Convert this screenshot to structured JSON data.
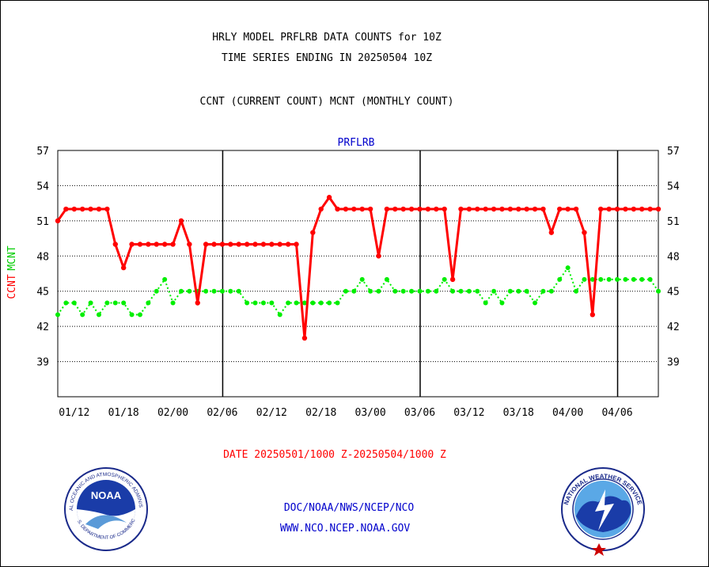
{
  "header": {
    "line1": "HRLY MODEL PRFLRB DATA COUNTS for 10Z",
    "line2": "TIME SERIES ENDING IN 20250504 10Z",
    "line3": "CCNT (CURRENT COUNT) MCNT (MONTHLY COUNT)",
    "plot_label": "PRFLRB"
  },
  "axis": {
    "ylabel_ccnt": "CCNT",
    "ylabel_mcnt": "MCNT",
    "yticks": [
      57,
      54,
      51,
      48,
      45,
      42,
      39
    ],
    "xticks": [
      "01/12",
      "01/18",
      "02/00",
      "02/06",
      "02/12",
      "02/18",
      "03/00",
      "03/06",
      "03/12",
      "03/18",
      "04/00",
      "04/06"
    ]
  },
  "footer": {
    "date_range": "DATE 20250501/1000 Z-20250504/1000 Z",
    "link1": "DOC/NOAA/NWS/NCEP/NCO",
    "link2": "WWW.NCO.NCEP.NOAA.GOV"
  },
  "logos": {
    "noaa_text": "NOAA",
    "noaa_ring": "NATIONAL OCEANIC AND ATMOSPHERIC ADMINISTRATION",
    "noaa_ring_bottom": "U.S. DEPARTMENT OF COMMERCE",
    "nws_ring": "NATIONAL WEATHER SERVICE"
  },
  "colors": {
    "ccnt": "#ff0000",
    "mcnt": "#00ee00",
    "axis": "#000000",
    "header": "#000000",
    "link": "#0000cc",
    "date": "#ff0000"
  },
  "chart_data": {
    "type": "line",
    "title": "HRLY MODEL PRFLRB DATA COUNTS for 10Z",
    "subtitle": "TIME SERIES ENDING IN 20250504 10Z",
    "xlabel": "DATE 20250501/1000 Z-20250504/1000 Z",
    "ylabel": "CCNT  MCNT",
    "ylim": [
      36,
      57
    ],
    "x_start": "01/10",
    "x_step_hours": 1,
    "grid": true,
    "series": [
      {
        "name": "CCNT",
        "values": [
          51,
          52,
          52,
          52,
          52,
          52,
          52,
          49,
          47,
          49,
          49,
          49,
          49,
          49,
          49,
          51,
          49,
          44,
          49,
          49,
          49,
          49,
          49,
          49,
          49,
          49,
          49,
          49,
          49,
          49,
          41,
          50,
          52,
          53,
          52,
          52,
          52,
          52,
          52,
          48,
          52,
          52,
          52,
          52,
          52,
          52,
          52,
          52,
          46,
          52,
          52,
          52,
          52,
          52,
          52,
          52,
          52,
          52,
          52,
          52,
          50,
          52,
          52,
          52,
          50,
          43,
          52,
          52,
          52,
          52,
          52,
          52,
          52,
          52
        ]
      },
      {
        "name": "MCNT",
        "values": [
          43,
          44,
          44,
          43,
          44,
          43,
          44,
          44,
          44,
          43,
          43,
          44,
          45,
          46,
          44,
          45,
          45,
          45,
          45,
          45,
          45,
          45,
          45,
          44,
          44,
          44,
          44,
          43,
          44,
          44,
          44,
          44,
          44,
          44,
          44,
          45,
          45,
          46,
          45,
          45,
          46,
          45,
          45,
          45,
          45,
          45,
          45,
          46,
          45,
          45,
          45,
          45,
          44,
          45,
          44,
          45,
          45,
          45,
          44,
          45,
          45,
          46,
          47,
          45,
          46,
          46,
          46,
          46,
          46,
          46,
          46,
          46,
          46,
          45
        ]
      }
    ]
  }
}
